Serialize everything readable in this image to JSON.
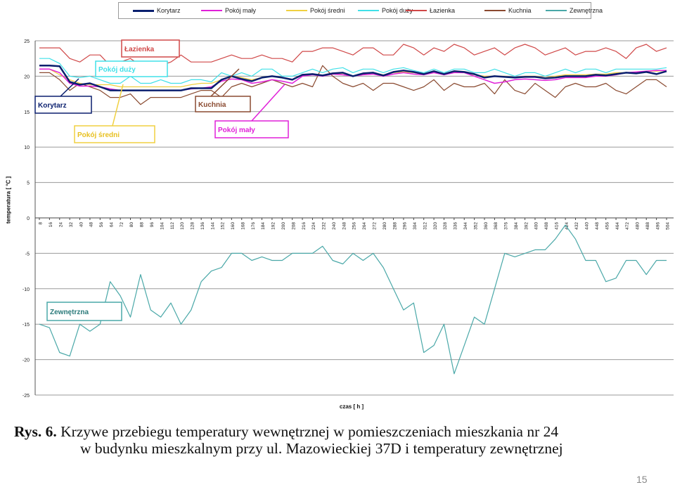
{
  "legend": [
    {
      "name": "Korytarz",
      "color": "#0a1f6e",
      "width": 2.5
    },
    {
      "name": "Pokój mały",
      "color": "#e020d8",
      "width": 1.5
    },
    {
      "name": "Pokój średni",
      "color": "#f0d040",
      "width": 1.2
    },
    {
      "name": "Pokój duży",
      "color": "#40e0e8",
      "width": 1.2
    },
    {
      "name": "Łazienka",
      "color": "#d04848",
      "width": 1.2
    },
    {
      "name": "Kuchnia",
      "color": "#8a4a30",
      "width": 1.2
    },
    {
      "name": "Zewnętrzna",
      "color": "#4aa8a8",
      "width": 1.2
    }
  ],
  "axes": {
    "ylabel": "temperatura [ °C ]",
    "xlabel": "czas [ h ]"
  },
  "annotations": [
    {
      "text": "Łazienka",
      "color": "#d04848",
      "text_color": "#d04848",
      "bg": "#ffffff"
    },
    {
      "text": "Pokój duży",
      "color": "#40e0e8",
      "text_color": "#40e0e8",
      "bg": "#ffffff"
    },
    {
      "text": "Korytarz",
      "color": "#0a1f6e",
      "text_color": "#0a1f6e",
      "bg": "#ffffff"
    },
    {
      "text": "Kuchnia",
      "color": "#8a4a30",
      "text_color": "#8a4a30",
      "bg": "#ffffff"
    },
    {
      "text": "Pokój średni",
      "color": "#f0d040",
      "text_color": "#e8c020",
      "bg": "#ffffff"
    },
    {
      "text": "Pokój mały",
      "color": "#e020d8",
      "text_color": "#e020d8",
      "bg": "#ffffff"
    },
    {
      "text": "Zewnętrzna",
      "color": "#4aa8a8",
      "text_color": "#2a7a7a",
      "bg": "#ffffff"
    }
  ],
  "caption": {
    "label": "Rys. 6.",
    "line1": " Krzywe przebiegu temperatury wewnętrznej w pomieszczeniach mieszkania nr 24",
    "line2": "w budynku mieszkalnym przy ul. Mazowieckiej 37D i temperatury zewnętrznej"
  },
  "page_number": "15",
  "chart_data": {
    "type": "line",
    "xlabel": "czas [ h ]",
    "ylabel": "temperatura [ °C ]",
    "ylim": [
      -25,
      25
    ],
    "yticks": [
      -25,
      -20,
      -15,
      -10,
      -5,
      0,
      5,
      10,
      15,
      20,
      25
    ],
    "x": [
      8,
      16,
      24,
      32,
      40,
      48,
      56,
      64,
      72,
      80,
      88,
      96,
      104,
      112,
      120,
      128,
      136,
      144,
      152,
      160,
      168,
      176,
      184,
      192,
      200,
      208,
      216,
      224,
      232,
      240,
      248,
      256,
      264,
      272,
      280,
      288,
      296,
      304,
      312,
      320,
      328,
      336,
      344,
      352,
      360,
      368,
      376,
      384,
      392,
      400,
      408,
      416,
      424,
      432,
      440,
      448,
      456,
      464,
      472,
      480,
      488,
      496,
      504
    ],
    "grid": "horizontal",
    "legend_position": "top",
    "series": [
      {
        "name": "Korytarz",
        "values": [
          21.5,
          21.5,
          21.4,
          19.2,
          18.8,
          19.0,
          18.5,
          18.0,
          18.0,
          18.0,
          18.0,
          18.0,
          18.0,
          18.0,
          18.0,
          18.3,
          18.3,
          18.3,
          19.5,
          20.0,
          19.6,
          19.3,
          19.8,
          20.0,
          19.8,
          19.5,
          20.2,
          20.3,
          20.1,
          20.4,
          20.5,
          20.0,
          20.4,
          20.5,
          20.1,
          20.6,
          20.8,
          20.6,
          20.3,
          20.7,
          20.3,
          20.7,
          20.6,
          20.3,
          19.8,
          20.0,
          19.9,
          19.8,
          19.9,
          19.9,
          19.7,
          19.8,
          20.0,
          20.0,
          20.0,
          20.2,
          20.1,
          20.3,
          20.5,
          20.4,
          20.6,
          20.3,
          20.7
        ]
      },
      {
        "name": "Pokój mały",
        "values": [
          21.0,
          21.0,
          20.5,
          19.0,
          18.6,
          18.6,
          18.5,
          18.2,
          18.0,
          18.0,
          18.0,
          18.0,
          18.0,
          18.0,
          18.0,
          18.2,
          18.3,
          18.5,
          19.3,
          19.6,
          19.5,
          19.0,
          19.2,
          19.5,
          19.3,
          19.0,
          20.0,
          20.2,
          20.0,
          20.3,
          20.2,
          20.0,
          20.2,
          20.3,
          20.0,
          20.3,
          20.5,
          20.3,
          20.2,
          20.5,
          20.2,
          20.5,
          20.5,
          20.0,
          19.5,
          19.0,
          19.2,
          19.5,
          19.6,
          19.5,
          19.4,
          19.5,
          19.8,
          19.8,
          19.8,
          20.0,
          20.0,
          20.2,
          20.5,
          20.6,
          20.7,
          20.8,
          20.8
        ]
      },
      {
        "name": "Pokój średni",
        "values": [
          21.0,
          21.0,
          20.2,
          19.5,
          19.0,
          18.8,
          18.8,
          18.8,
          18.5,
          18.5,
          18.5,
          18.5,
          18.5,
          18.5,
          18.5,
          18.8,
          19.0,
          19.0,
          19.5,
          20.0,
          19.8,
          19.5,
          19.8,
          20.0,
          19.8,
          19.5,
          20.1,
          20.3,
          20.1,
          20.3,
          20.4,
          20.0,
          20.3,
          20.5,
          20.2,
          20.5,
          20.6,
          20.5,
          20.3,
          20.5,
          20.3,
          20.6,
          20.5,
          20.2,
          20.0,
          20.0,
          20.0,
          19.8,
          20.0,
          20.0,
          19.8,
          20.0,
          20.2,
          20.2,
          20.2,
          20.3,
          20.3,
          20.5,
          20.5,
          20.5,
          20.7,
          20.7,
          20.8
        ]
      },
      {
        "name": "Pokój duży",
        "values": [
          22.5,
          22.5,
          21.8,
          20.0,
          19.8,
          20.0,
          19.5,
          19.0,
          19.0,
          20.0,
          19.0,
          19.0,
          19.5,
          19.0,
          19.0,
          19.5,
          19.5,
          19.2,
          20.5,
          20.0,
          20.5,
          20.0,
          21.0,
          21.0,
          20.0,
          20.0,
          20.5,
          21.0,
          20.5,
          21.0,
          21.2,
          20.5,
          21.0,
          21.0,
          20.5,
          21.0,
          21.2,
          20.8,
          20.5,
          21.0,
          20.5,
          21.0,
          21.0,
          20.5,
          20.5,
          21.0,
          20.5,
          20.0,
          20.5,
          20.5,
          20.0,
          20.5,
          21.0,
          20.5,
          21.0,
          21.0,
          20.5,
          21.0,
          21.0,
          21.0,
          21.0,
          21.0,
          21.2
        ]
      },
      {
        "name": "Łazienka",
        "values": [
          24.0,
          24.0,
          24.0,
          22.5,
          22.0,
          23.0,
          23.0,
          21.5,
          22.0,
          22.5,
          21.5,
          22.0,
          21.5,
          22.0,
          23.0,
          22.0,
          22.0,
          22.0,
          22.5,
          23.0,
          22.5,
          22.5,
          23.0,
          22.5,
          22.5,
          22.0,
          23.5,
          23.5,
          24.0,
          24.0,
          23.5,
          23.0,
          24.0,
          24.0,
          23.0,
          23.0,
          24.5,
          24.0,
          23.0,
          24.0,
          23.5,
          24.5,
          24.0,
          23.0,
          23.5,
          24.0,
          23.0,
          24.0,
          24.5,
          24.0,
          23.0,
          23.5,
          24.0,
          23.0,
          23.5,
          23.5,
          24.0,
          23.5,
          22.5,
          24.0,
          24.5,
          23.5,
          24.0
        ]
      },
      {
        "name": "Kuchnia",
        "values": [
          20.5,
          20.5,
          19.5,
          18.0,
          19.0,
          18.5,
          18.0,
          17.0,
          17.0,
          17.5,
          16.0,
          17.0,
          17.0,
          17.0,
          17.0,
          17.5,
          18.0,
          18.0,
          17.0,
          18.5,
          19.0,
          18.5,
          19.0,
          19.5,
          19.0,
          18.5,
          19.0,
          18.5,
          21.5,
          20.0,
          19.0,
          18.5,
          19.0,
          18.0,
          19.0,
          19.0,
          18.5,
          18.0,
          18.5,
          19.5,
          18.0,
          19.0,
          18.5,
          18.5,
          19.0,
          17.5,
          19.5,
          18.0,
          17.5,
          19.0,
          18.0,
          17.0,
          18.5,
          19.0,
          18.5,
          18.5,
          19.0,
          18.0,
          17.5,
          18.5,
          19.5,
          19.5,
          18.5
        ]
      },
      {
        "name": "Zewnętrzna",
        "values": [
          -15.0,
          -15.5,
          -19.0,
          -19.5,
          -15.0,
          -16.0,
          -15.0,
          -9.0,
          -11.0,
          -14.0,
          -8.0,
          -13.0,
          -14.0,
          -12.0,
          -15.0,
          -13.0,
          -9.0,
          -7.5,
          -7.0,
          -5.0,
          -5.0,
          -6.0,
          -5.5,
          -6.0,
          -6.0,
          -5.0,
          -5.0,
          -5.0,
          -4.0,
          -6.0,
          -6.5,
          -5.0,
          -6.0,
          -5.0,
          -7.0,
          -10.0,
          -13.0,
          -12.0,
          -19.0,
          -18.0,
          -15.0,
          -22.0,
          -18.0,
          -14.0,
          -15.0,
          -10.0,
          -5.0,
          -5.5,
          -5.0,
          -4.5,
          -4.5,
          -3.0,
          -1.0,
          -3.0,
          -6.0,
          -6.0,
          -9.0,
          -8.5,
          -6.0,
          -6.0,
          -8.0,
          -6.0,
          -6.0
        ]
      }
    ]
  }
}
